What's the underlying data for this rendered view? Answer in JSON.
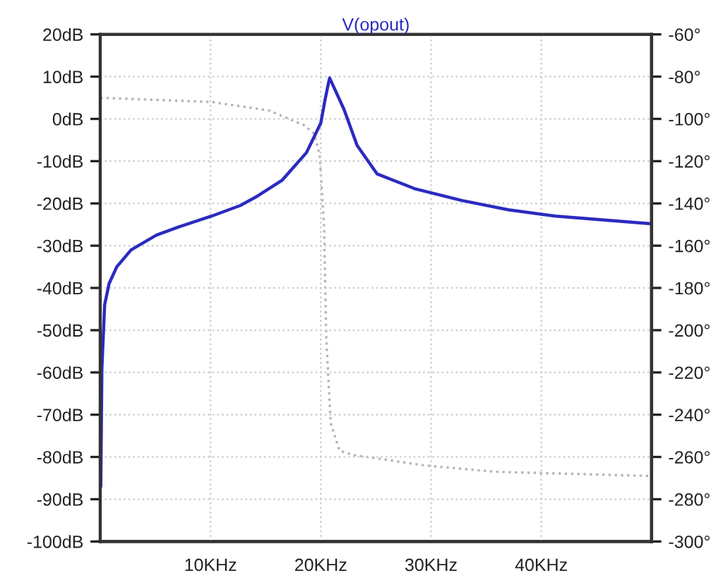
{
  "chart_data": {
    "type": "line",
    "title": "V(opout)",
    "xlim": [
      0,
      50
    ],
    "xticks": [
      {
        "value": 10,
        "label": "10KHz"
      },
      {
        "value": 20,
        "label": "20KHz"
      },
      {
        "value": 30,
        "label": "30KHz"
      },
      {
        "value": 40,
        "label": "40KHz"
      }
    ],
    "ylim": [
      -100,
      20
    ],
    "yticks": [
      {
        "value": 20,
        "label": "20dB"
      },
      {
        "value": 10,
        "label": "10dB"
      },
      {
        "value": 0,
        "label": "0dB"
      },
      {
        "value": -10,
        "label": "-10dB"
      },
      {
        "value": -20,
        "label": "-20dB"
      },
      {
        "value": -30,
        "label": "-30dB"
      },
      {
        "value": -40,
        "label": "-40dB"
      },
      {
        "value": -50,
        "label": "-50dB"
      },
      {
        "value": -60,
        "label": "-60dB"
      },
      {
        "value": -70,
        "label": "-70dB"
      },
      {
        "value": -80,
        "label": "-80dB"
      },
      {
        "value": -90,
        "label": "-90dB"
      },
      {
        "value": -100,
        "label": "-100dB"
      }
    ],
    "y2lim": [
      -300,
      -60
    ],
    "y2ticks": [
      {
        "value": -60,
        "label": "-60°"
      },
      {
        "value": -80,
        "label": "-80°"
      },
      {
        "value": -100,
        "label": "-100°"
      },
      {
        "value": -120,
        "label": "-120°"
      },
      {
        "value": -140,
        "label": "-140°"
      },
      {
        "value": -160,
        "label": "-160°"
      },
      {
        "value": -180,
        "label": "-180°"
      },
      {
        "value": -200,
        "label": "-200°"
      },
      {
        "value": -220,
        "label": "-220°"
      },
      {
        "value": -240,
        "label": "-240°"
      },
      {
        "value": -260,
        "label": "-260°"
      },
      {
        "value": -280,
        "label": "-280°"
      },
      {
        "value": -300,
        "label": "-300°"
      }
    ],
    "grid": true,
    "series": [
      {
        "color": "#2b2bc0",
        "line_style": "solid",
        "x": [
          0.05,
          0.15,
          0.4,
          0.8,
          1.5,
          2.8,
          5.1,
          7.2,
          10.1,
          12.7,
          14.1,
          16.5,
          18.7,
          20,
          20.4,
          20.8,
          22.1,
          23.3,
          25.1,
          28.5,
          32.8,
          37,
          41.3,
          49.9
        ],
        "values": [
          -87,
          -59,
          -44,
          -39,
          -35,
          -31,
          -27.5,
          -25.5,
          -23,
          -20.5,
          -18.5,
          -14.5,
          -8,
          -1,
          4.7,
          9.7,
          2.3,
          -6.3,
          -13,
          -16.5,
          -19.3,
          -21.5,
          -23,
          -24.8
        ]
      },
      {
        "color": "#b4b4b4",
        "line_style": "dotted",
        "axis": "y2",
        "x": [
          0,
          10.1,
          15.3,
          18.5,
          19.4,
          19.9,
          20.3,
          20.5,
          20.9,
          21.7,
          22.9,
          29.4,
          35.8,
          49.9
        ],
        "values": [
          -90,
          -92,
          -96,
          -103,
          -107,
          -117,
          -151,
          -204,
          -244,
          -257,
          -259,
          -264,
          -267,
          -269
        ]
      }
    ]
  }
}
